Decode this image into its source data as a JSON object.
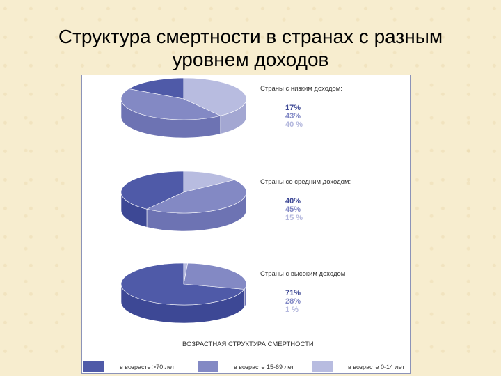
{
  "title_line1": "Структура смертности в странах с разным",
  "title_line2": "уровнем доходов",
  "chart_data": [
    {
      "type": "pie",
      "title": "Страны с низким доходом:",
      "categories": [
        "в возрасте >70 лет",
        "в возрасте 15-69 лет",
        "в возрасте 0-14 лет"
      ],
      "values": [
        17,
        43,
        40
      ],
      "value_labels": [
        "17%",
        "43%",
        "40 %"
      ]
    },
    {
      "type": "pie",
      "title": "Страны со средним доходом:",
      "categories": [
        "в возрасте >70 лет",
        "в возрасте 15-69 лет",
        "в возрасте 0-14 лет"
      ],
      "values": [
        40,
        45,
        15
      ],
      "value_labels": [
        "40%",
        "45%",
        "15 %"
      ]
    },
    {
      "type": "pie",
      "title": "Страны с высоким доходом",
      "categories": [
        "в возрасте >70 лет",
        "в возрасте 15-69 лет",
        "в возрасте 0-14 лет"
      ],
      "values": [
        71,
        28,
        1
      ],
      "value_labels": [
        "71%",
        "28%",
        "1 %"
      ]
    }
  ],
  "legend": {
    "title": "ВОЗРАСТНАЯ СТРУКТУРА СМЕРТНОСТИ",
    "items": [
      {
        "label": "в возрасте >70 лет",
        "color": "#4f5aa8"
      },
      {
        "label": "в возрасте 15-69 лет",
        "color": "#8389c4"
      },
      {
        "label": "в возрасте 0-14 лет",
        "color": "#b8bce0"
      }
    ]
  },
  "colors": {
    "top": [
      "#4f5aa8",
      "#8389c4",
      "#b8bce0"
    ],
    "side": [
      "#3d4895",
      "#6d73b3",
      "#a3a7d2"
    ],
    "text": [
      "#3d4895",
      "#7f86c4",
      "#b3b7dd"
    ]
  }
}
